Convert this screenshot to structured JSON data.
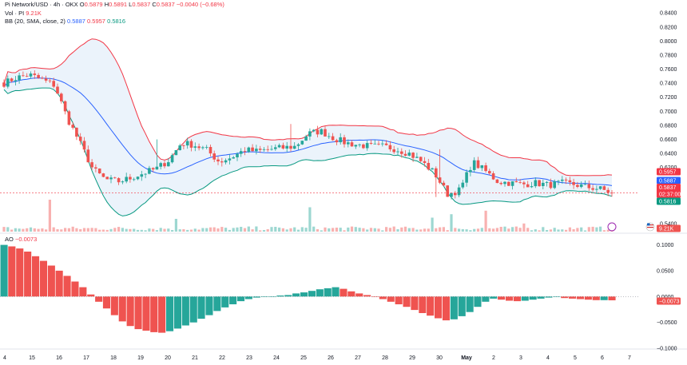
{
  "header": {
    "symbol": "Pi Network/USD · 4h · OKX",
    "o_label": "O",
    "o_value": "0.5879",
    "h_label": "H",
    "h_value": "0.5891",
    "l_label": "L",
    "l_value": "0.5837",
    "c_label": "C",
    "c_value": "0.5837",
    "change": "−0.0040 (−0.68%)",
    "vol_label": "Vol · PI",
    "vol_value": "9.21K",
    "bb_label": "BB (20, SMA, close, 2)",
    "bb_basis": "0.5887",
    "bb_upper": "0.5957",
    "bb_lower": "0.5816",
    "ao_label": "AO",
    "ao_value": "−0.0073"
  },
  "colors": {
    "up": "#26a69a",
    "down": "#ef5350",
    "basis": "#2962ff",
    "upper": "#f23645",
    "lower": "#089981",
    "fill": "#e3eef9"
  },
  "tags": {
    "upper": "0.5957",
    "basis": "0.5887",
    "price": "0.5837",
    "countdown": "02:37:00",
    "lower": "0.5816",
    "volume": "9.21K",
    "ao": "−0.0073"
  },
  "chart_data": {
    "type": "candlestick",
    "title": "Pi Network/USD · 4h · OKX",
    "price_axis": {
      "ylim": [
        0.539,
        0.847
      ],
      "ticks": [
        "0.8400",
        "0.8200",
        "0.8000",
        "0.7800",
        "0.7600",
        "0.7400",
        "0.7200",
        "0.7000",
        "0.6800",
        "0.6600",
        "0.6400",
        "0.6200",
        "0.5400"
      ]
    },
    "ao_axis": {
      "ylim": [
        -0.1,
        0.104
      ],
      "ticks": [
        "0.1000",
        "0.0500",
        "0.0000",
        "−0.0500",
        "−0.1000"
      ]
    },
    "x_labels": [
      "4",
      "15",
      "16",
      "17",
      "18",
      "19",
      "20",
      "21",
      "22",
      "23",
      "24",
      "25",
      "26",
      "27",
      "28",
      "29",
      "30",
      "May",
      "2",
      "3",
      "4",
      "5",
      "6",
      "7"
    ],
    "x_label_bold": "May",
    "anchors": [
      0.74,
      0.748,
      0.752,
      0.745,
      0.737,
      0.69,
      0.655,
      0.618,
      0.603,
      0.6,
      0.605,
      0.612,
      0.618,
      0.63,
      0.655,
      0.652,
      0.645,
      0.628,
      0.635,
      0.645,
      0.643,
      0.646,
      0.648,
      0.65,
      0.668,
      0.672,
      0.662,
      0.655,
      0.652,
      0.65,
      0.65,
      0.646,
      0.64,
      0.628,
      0.612,
      0.582,
      0.588,
      0.628,
      0.615,
      0.6,
      0.598,
      0.596,
      0.598,
      0.595,
      0.598,
      0.596,
      0.592,
      0.59,
      0.5837
    ],
    "spikes": [
      {
        "index": 88,
        "high": 0.655
      },
      {
        "index": 40,
        "high": 0.66
      },
      {
        "index": 75,
        "high": 0.682
      },
      {
        "index": 114,
        "high": 0.646
      },
      {
        "index": 113,
        "low": 0.578
      },
      {
        "index": 128,
        "high": 0.608
      }
    ],
    "volume": {
      "max": 55,
      "spikes": [
        [
          12,
          55
        ],
        [
          45,
          22
        ],
        [
          126,
          36
        ],
        [
          80,
          42
        ],
        [
          112,
          24
        ],
        [
          136,
          14
        ],
        [
          117,
          30
        ]
      ]
    },
    "ao": [
      0.1,
      0.097,
      0.093,
      0.087,
      0.078,
      0.069,
      0.06,
      0.05,
      0.04,
      0.029,
      0.018,
      0.004,
      -0.01,
      -0.023,
      -0.036,
      -0.048,
      -0.057,
      -0.063,
      -0.066,
      -0.069,
      -0.07,
      -0.067,
      -0.062,
      -0.056,
      -0.05,
      -0.043,
      -0.036,
      -0.028,
      -0.021,
      -0.015,
      -0.009,
      -0.005,
      -0.002,
      -0.001,
      -0.0,
      0.002,
      0.003,
      0.006,
      0.008,
      0.011,
      0.014,
      0.016,
      0.018,
      0.015,
      0.01,
      0.006,
      0.003,
      -0.001,
      -0.005,
      -0.01,
      -0.015,
      -0.02,
      -0.026,
      -0.032,
      -0.037,
      -0.042,
      -0.046,
      -0.044,
      -0.038,
      -0.03,
      -0.02,
      -0.01,
      -0.004,
      -0.006,
      -0.008,
      -0.009,
      -0.008,
      -0.006,
      -0.004,
      -0.002,
      -0.001,
      -0.003,
      -0.004,
      -0.005,
      -0.006,
      -0.007,
      -0.007,
      -0.0073
    ],
    "legend": [
      "Pi Network/USD",
      "Vol · PI",
      "BB (20, SMA, close, 2)",
      "AO"
    ]
  }
}
